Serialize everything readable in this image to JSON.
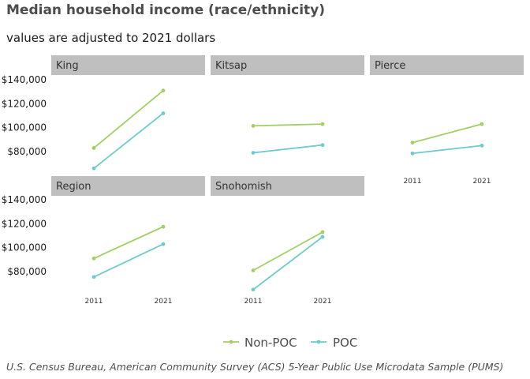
{
  "title": "Median household income (race/ethnicity)",
  "subtitle": "values are adjusted to 2021 dollars",
  "caption": "U.S. Census Bureau, American Community Survey (ACS) 5-Year Public Use Microdata Sample (PUMS)",
  "colors": {
    "non_poc": "#a4cf65",
    "poc": "#6ecbcb",
    "strip": "#bfbfbf"
  },
  "chart_data": {
    "type": "line",
    "title": "Median household income (race/ethnicity)",
    "subtitle": "values are adjusted to 2021 dollars",
    "x": [
      2011,
      2021
    ],
    "x_tick_labels": [
      "2011",
      "2021"
    ],
    "ylim": [
      64000,
      145000
    ],
    "y_ticks": [
      80000,
      100000,
      120000,
      140000
    ],
    "y_tick_labels": [
      "$80,000",
      "$100,000",
      "$120,000",
      "$140,000"
    ],
    "grid": false,
    "legend": {
      "placement": "bottom",
      "entries": [
        "Non-POC",
        "POC"
      ]
    },
    "panels": [
      {
        "name": "King",
        "series": [
          {
            "name": "Non-POC",
            "values": [
              83000,
              131000
            ]
          },
          {
            "name": "POC",
            "values": [
              66000,
              112000
            ]
          }
        ]
      },
      {
        "name": "Kitsap",
        "series": [
          {
            "name": "Non-POC",
            "values": [
              101500,
              103000
            ]
          },
          {
            "name": "POC",
            "values": [
              79000,
              85500
            ]
          }
        ]
      },
      {
        "name": "Pierce",
        "series": [
          {
            "name": "Non-POC",
            "values": [
              87500,
              103000
            ]
          },
          {
            "name": "POC",
            "values": [
              78500,
              85000
            ]
          }
        ]
      },
      {
        "name": "Region",
        "series": [
          {
            "name": "Non-POC",
            "values": [
              91000,
              117500
            ]
          },
          {
            "name": "POC",
            "values": [
              75500,
              103000
            ]
          }
        ]
      },
      {
        "name": "Snohomish",
        "series": [
          {
            "name": "Non-POC",
            "values": [
              81000,
              113000
            ]
          },
          {
            "name": "POC",
            "values": [
              65000,
              109000
            ]
          }
        ]
      }
    ]
  }
}
